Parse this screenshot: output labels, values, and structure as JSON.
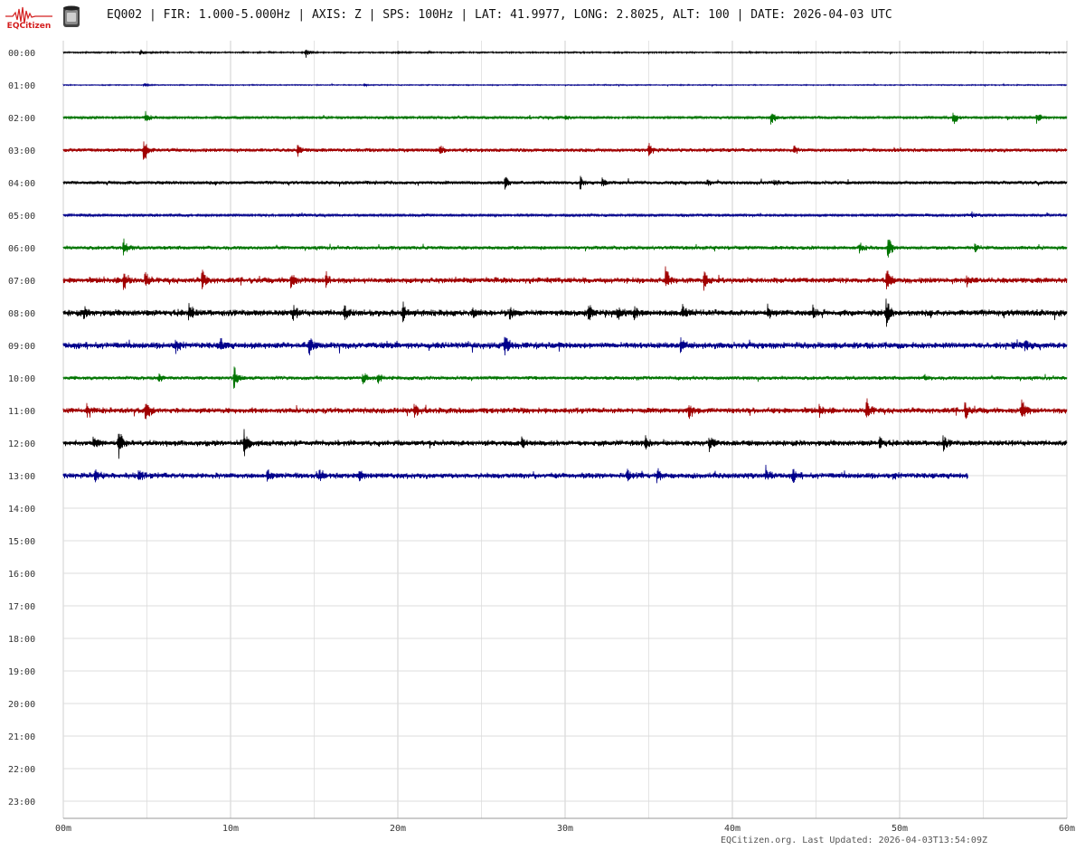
{
  "header": {
    "logo_text": "EQCitizen",
    "title": "EQ002 | FIR: 1.000-5.000Hz | AXIS: Z | SPS: 100Hz | LAT: 41.9977, LONG: 2.8025, ALT: 100 | DATE: 2026-04-03 UTC"
  },
  "footer": {
    "text": "EQCitizen.org. Last Updated: 2026-04-03T13:54:09Z"
  },
  "colors": {
    "trace_cycle": [
      "#000000",
      "#00008b",
      "#007400",
      "#a00000"
    ],
    "grid": "#dcdcdc",
    "axis": "#999999"
  },
  "chart_data": {
    "type": "line",
    "title": "",
    "xlabel": "",
    "ylabel": "",
    "x_unit": "minutes",
    "xlim": [
      0,
      60
    ],
    "x_ticks": [
      "00m",
      "10m",
      "20m",
      "30m",
      "40m",
      "50m",
      "60m"
    ],
    "rows": [
      "00:00",
      "01:00",
      "02:00",
      "03:00",
      "04:00",
      "05:00",
      "06:00",
      "07:00",
      "08:00",
      "09:00",
      "10:00",
      "11:00",
      "12:00",
      "13:00",
      "14:00",
      "15:00",
      "16:00",
      "17:00",
      "18:00",
      "19:00",
      "20:00",
      "21:00",
      "22:00",
      "23:00"
    ],
    "grid": true,
    "series": [
      {
        "row": 0,
        "color": "#000000",
        "end_min": 60,
        "noise": 0.25,
        "events": [
          [
            4.6,
            1.2
          ],
          [
            14.5,
            2.0
          ],
          [
            20.0,
            0.6
          ]
        ]
      },
      {
        "row": 1,
        "color": "#00008b",
        "end_min": 60,
        "noise": 0.18,
        "events": [
          [
            4.8,
            0.8
          ],
          [
            18.0,
            0.5
          ]
        ]
      },
      {
        "row": 2,
        "color": "#007400",
        "end_min": 60,
        "noise": 0.45,
        "events": [
          [
            4.9,
            2.5
          ],
          [
            42.3,
            3.4
          ],
          [
            53.2,
            3.0
          ],
          [
            58.2,
            2.2
          ],
          [
            30,
            0.9
          ]
        ]
      },
      {
        "row": 3,
        "color": "#a00000",
        "end_min": 60,
        "noise": 0.6,
        "events": [
          [
            4.8,
            6.0
          ],
          [
            14.0,
            2.2
          ],
          [
            22.5,
            1.8
          ],
          [
            35.0,
            2.5
          ],
          [
            43.7,
            1.4
          ]
        ]
      },
      {
        "row": 4,
        "color": "#000000",
        "end_min": 60,
        "noise": 0.55,
        "events": [
          [
            26.4,
            2.4
          ],
          [
            30.9,
            2.8
          ],
          [
            32.2,
            1.8
          ],
          [
            38.5,
            1.5
          ],
          [
            42.5,
            1.2
          ]
        ]
      },
      {
        "row": 5,
        "color": "#00008b",
        "end_min": 60,
        "noise": 0.45,
        "events": [
          [
            54.3,
            1.0
          ]
        ]
      },
      {
        "row": 6,
        "color": "#007400",
        "end_min": 60,
        "noise": 0.6,
        "events": [
          [
            3.6,
            3.5
          ],
          [
            47.6,
            2.2
          ],
          [
            49.3,
            5.0
          ],
          [
            54.5,
            1.5
          ]
        ]
      },
      {
        "row": 7,
        "color": "#a00000",
        "end_min": 60,
        "noise": 0.9,
        "events": [
          [
            3.6,
            5.0
          ],
          [
            4.9,
            3.5
          ],
          [
            8.3,
            4.0
          ],
          [
            13.6,
            3.2
          ],
          [
            15.7,
            3.0
          ],
          [
            36.0,
            4.5
          ],
          [
            38.3,
            3.5
          ],
          [
            49.2,
            4.5
          ],
          [
            54.0,
            2.0
          ]
        ]
      },
      {
        "row": 8,
        "color": "#000000",
        "end_min": 60,
        "noise": 1.0,
        "events": [
          [
            1.2,
            2.0
          ],
          [
            7.5,
            3.5
          ],
          [
            13.7,
            3.2
          ],
          [
            16.8,
            2.5
          ],
          [
            20.3,
            3.5
          ],
          [
            24.5,
            2.2
          ],
          [
            26.7,
            2.5
          ],
          [
            31.4,
            3.5
          ],
          [
            33.1,
            3.3
          ],
          [
            34.1,
            2.8
          ],
          [
            37.0,
            2.8
          ],
          [
            42.1,
            2.2
          ],
          [
            44.8,
            2.0
          ],
          [
            49.2,
            5.5
          ]
        ]
      },
      {
        "row": 9,
        "color": "#00008b",
        "end_min": 60,
        "noise": 1.0,
        "events": [
          [
            6.7,
            3.0
          ],
          [
            9.4,
            2.5
          ],
          [
            14.7,
            3.8
          ],
          [
            26.4,
            4.5
          ],
          [
            36.9,
            2.5
          ],
          [
            57.5,
            1.8
          ]
        ]
      },
      {
        "row": 10,
        "color": "#007400",
        "end_min": 60,
        "noise": 0.6,
        "events": [
          [
            5.7,
            1.6
          ],
          [
            10.2,
            5.0
          ],
          [
            17.9,
            2.5
          ],
          [
            18.8,
            2.5
          ],
          [
            51.5,
            1.2
          ]
        ]
      },
      {
        "row": 11,
        "color": "#a00000",
        "end_min": 60,
        "noise": 0.9,
        "events": [
          [
            1.4,
            2.4
          ],
          [
            4.9,
            5.5
          ],
          [
            21.0,
            2.5
          ],
          [
            37.4,
            3.5
          ],
          [
            45.2,
            2.0
          ],
          [
            48.0,
            5.0
          ],
          [
            53.9,
            3.0
          ],
          [
            57.3,
            4.5
          ]
        ]
      },
      {
        "row": 12,
        "color": "#000000",
        "end_min": 60,
        "noise": 0.9,
        "events": [
          [
            1.8,
            2.5
          ],
          [
            3.3,
            6.0
          ],
          [
            10.8,
            5.0
          ],
          [
            27.4,
            2.0
          ],
          [
            34.8,
            2.5
          ],
          [
            38.6,
            3.0
          ],
          [
            48.8,
            2.2
          ],
          [
            52.6,
            2.5
          ]
        ]
      },
      {
        "row": 13,
        "color": "#00008b",
        "end_min": 54.1,
        "noise": 0.9,
        "events": [
          [
            1.9,
            2.2
          ],
          [
            4.5,
            2.0
          ],
          [
            12.2,
            2.0
          ],
          [
            15.3,
            1.8
          ],
          [
            17.7,
            2.5
          ],
          [
            33.7,
            2.3
          ],
          [
            35.5,
            3.0
          ],
          [
            42.0,
            1.8
          ],
          [
            43.6,
            2.5
          ],
          [
            49.6,
            1.0
          ]
        ]
      }
    ]
  }
}
